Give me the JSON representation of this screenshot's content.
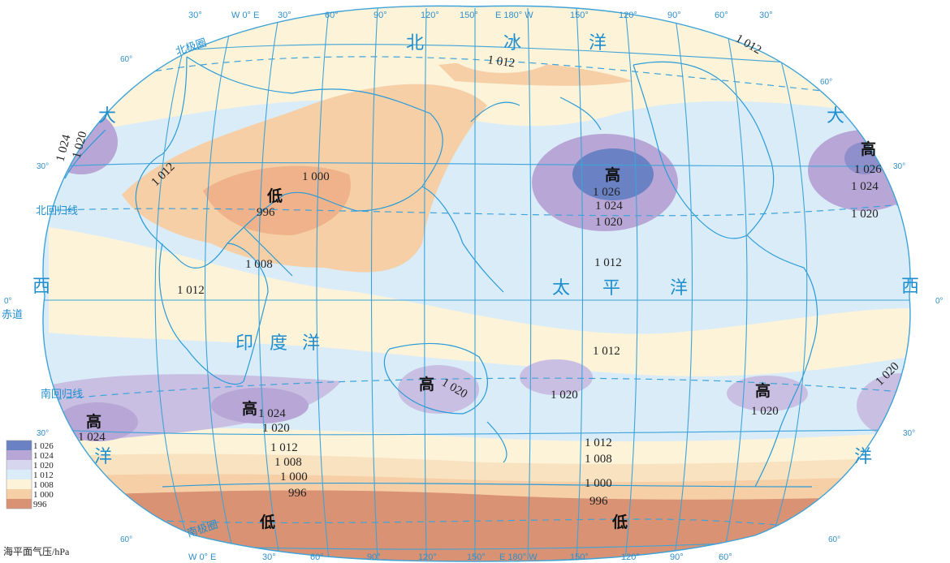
{
  "longitude_labels_top": [
    "30°",
    "W 0° E",
    "30°",
    "60°",
    "90°",
    "120°",
    "150°",
    "E 180° W",
    "150°",
    "120°",
    "90°",
    "60°",
    "30°"
  ],
  "longitude_labels_bottom": [
    "W 0° E",
    "30°",
    "60°",
    "90°",
    "120°",
    "150°",
    "E 180° W",
    "150°",
    "120°",
    "90°",
    "60°"
  ],
  "latitude_labels": {
    "n60_left": "60°",
    "n60_right": "60°",
    "n30_left": "30°",
    "n30_right": "30°",
    "eq_left": "0°",
    "eq_right": "0°",
    "s30_left": "30°",
    "s30_right": "30°",
    "s60_left": "60°",
    "s60_right": "60°"
  },
  "line_labels": {
    "arctic_circle": "北极圈",
    "tropic_cancer": "北回归线",
    "equator": "赤道",
    "tropic_capricorn": "南回归线",
    "antarctic_circle": "南极圈"
  },
  "ocean_chars": {
    "arctic": [
      "北",
      "冰",
      "洋"
    ],
    "atlantic_west": [
      "大",
      "西",
      "洋"
    ],
    "atlantic_east": [
      "大",
      "西",
      "洋"
    ],
    "pacific": [
      "太",
      "平",
      "洋"
    ],
    "indian": [
      "印",
      "度",
      "洋"
    ]
  },
  "pressure_centers": {
    "high": "高",
    "low": "低"
  },
  "isobar_labels": {
    "arctic": "1 012",
    "greenland": "1 012",
    "atl_n_1024": "1 024",
    "atl_n_1020": "1 020",
    "africa_1012": "1 012",
    "asia_1000": "1 000",
    "asia_996": "996",
    "asia_1008": "1 008",
    "ind_1012": "1 012",
    "pac_1026": "1 026",
    "pac_1024": "1 024",
    "pac_1020": "1 020",
    "pac_1012": "1 012",
    "pac_1012b": "1 012",
    "azores_1026": "1 026",
    "azores_1024": "1 024",
    "azores_1020": "1 020",
    "sa_high_1024": "1 024",
    "sio_1024": "1 024",
    "sio_1020": "1 020",
    "aus_1020": "1 020",
    "sp_1020": "1 020",
    "sep_1020": "1 020",
    "sa_east_1020": "1 020",
    "s_1012": "1 012",
    "s_1008": "1 008",
    "s_1000": "1 000",
    "s_996": "996",
    "sp_1012": "1 012",
    "sp_1008": "1 008",
    "sp_1000": "1 000",
    "sp_996": "996"
  },
  "legend": {
    "items": [
      {
        "label": "1 026",
        "color": "#6a81c3"
      },
      {
        "label": "1 024",
        "color": "#b7a6d6"
      },
      {
        "label": "1 020",
        "color": "#d6d7ee"
      },
      {
        "label": "1 012",
        "color": "#d9ecf8"
      },
      {
        "label": "1 008",
        "color": "#fdf3d9"
      },
      {
        "label": "1 000",
        "color": "#f6cfa6"
      },
      {
        "label": "996",
        "color": "#d99273"
      }
    ],
    "title": "海平面气压/hPa"
  },
  "colors": {
    "grid": "#3fa3d8",
    "coast": "#2a9bd8",
    "ocean_bg": "#d9ecf8"
  }
}
